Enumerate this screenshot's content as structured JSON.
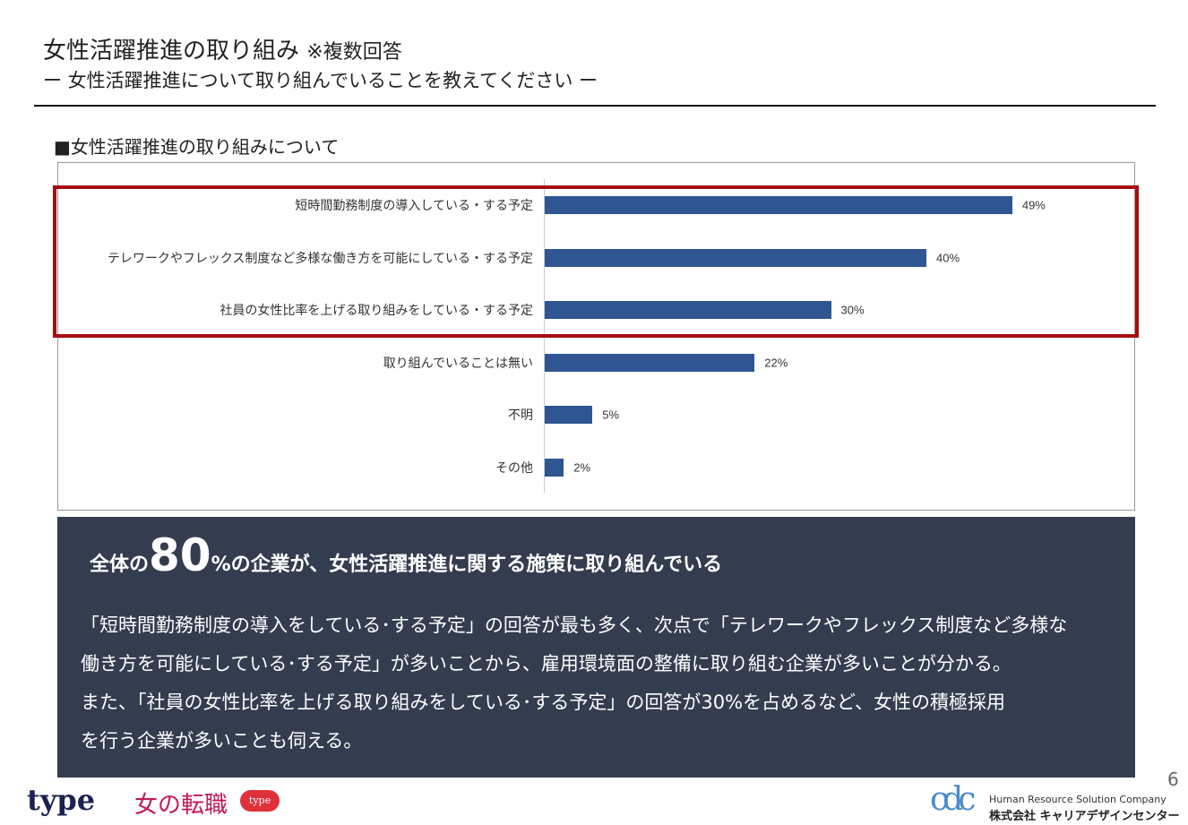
{
  "header": {
    "title": "女性活躍推進の取り組み",
    "title_note": "※複数回答",
    "subtitle": "ー 女性活躍推進について取り組んでいることを教えてください ー"
  },
  "section_title": "■女性活躍推進の取り組みについて",
  "chart_data": {
    "type": "bar",
    "orientation": "horizontal",
    "categories": [
      "短時間勤務制度の導入している・する予定",
      "テレワークやフレックス制度など多様な働き方を可能にしている・する予定",
      "社員の女性比率を上げる取り組みをしている・する予定",
      "取り組んでいることは無い",
      "不明",
      "その他"
    ],
    "values": [
      49,
      40,
      30,
      22,
      5,
      2
    ],
    "value_labels": [
      "49%",
      "40%",
      "30%",
      "22%",
      "5%",
      "2%"
    ],
    "unit": "%",
    "bar_color": "#2f5592",
    "highlight_color": "#a50d12",
    "highlighted_categories": [
      0,
      1,
      2
    ],
    "grid": false
  },
  "summary": {
    "headline_prefix": "全体の",
    "headline_number": "80",
    "headline_suffix": "%の企業が、女性活躍推進に関する施策に取り組んでいる",
    "lines": [
      "「短時間勤務制度の導入をしている･する予定」の回答が最も多く、次点で「テレワークやフレックス制度など多様な",
      "働き方を可能にしている･する予定」が多いことから、雇用環境面の整備に取り組む企業が多いことが分かる。",
      "また、「社員の女性比率を上げる取り組みをしている･する予定」の回答が30%を占めるなど、女性の積極採用",
      "を行う企業が多いことも伺える。"
    ],
    "background": "#333d4f"
  },
  "page_number": "6",
  "footer": {
    "logo_type": "type",
    "logo_jo": "女の転職",
    "logo_badge": "type",
    "logo_cdc": "cdc",
    "company_en": "Human Resource Solution Company",
    "company_jp": "株式会社 キャリアデザインセンター"
  }
}
